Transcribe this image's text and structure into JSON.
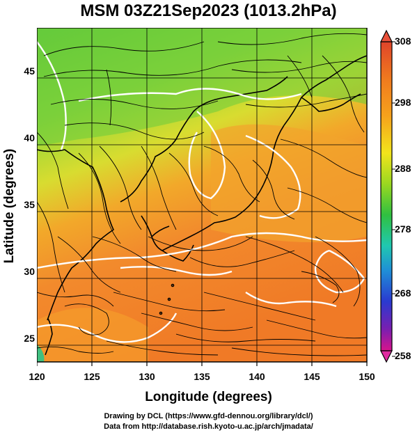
{
  "title": "MSM 03Z21Sep2023 (1013.2hPa)",
  "x_axis": {
    "label": "Longitude (degrees)",
    "ticks": [
      "120",
      "125",
      "130",
      "135",
      "140",
      "145",
      "150"
    ],
    "range": [
      120,
      150
    ]
  },
  "y_axis": {
    "label": "Latitude  (degrees)",
    "ticks": [
      "25",
      "30",
      "35",
      "40",
      "45"
    ],
    "range": [
      22.5,
      47.5
    ]
  },
  "colorbar": {
    "ticks": [
      "308",
      "298",
      "288",
      "278",
      "268",
      "258"
    ],
    "range": [
      258,
      308
    ],
    "colors": [
      "#d7148c",
      "#7a1fb0",
      "#2a3ad0",
      "#1f8fd6",
      "#20c8b0",
      "#30c040",
      "#9ad820",
      "#f2e41c",
      "#f6a21c",
      "#f07a1e",
      "#e0442a"
    ]
  },
  "footer": {
    "line1": "Drawing by DCL (https://www.gfd-dennou.org/library/dcl/)",
    "line2": "Data from http://database.rish.kyoto-u.ac.jp/arch/jmadata/"
  },
  "field_colors": {
    "land_north": "#7fd040",
    "warm_orange": "#f28a2e",
    "ocean_orange": "#f07a26",
    "yellow_band": "#e7d832",
    "contour": "#ffffff",
    "streamline": "#000000"
  }
}
